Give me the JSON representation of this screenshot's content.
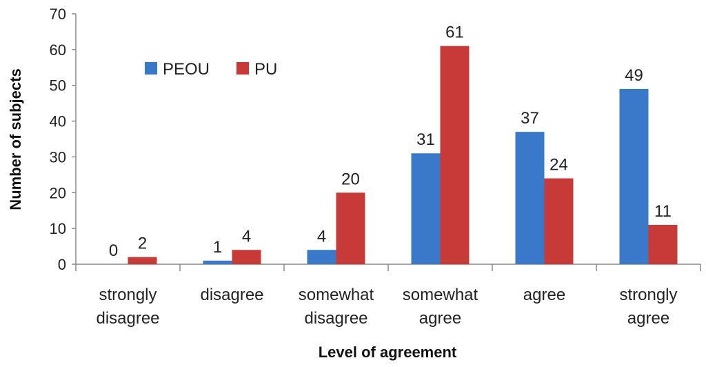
{
  "chart_data": {
    "type": "bar",
    "xlabel": "Level of agreement",
    "ylabel": "Number of subjects",
    "ylim": [
      0,
      70
    ],
    "yticks": [
      0,
      10,
      20,
      30,
      40,
      50,
      60,
      70
    ],
    "categories": [
      [
        "strongly",
        "disagree"
      ],
      [
        "disagree"
      ],
      [
        "somewhat",
        "disagree"
      ],
      [
        "somewhat",
        "agree"
      ],
      [
        "agree"
      ],
      [
        "strongly",
        "agree"
      ]
    ],
    "series": [
      {
        "name": "PEOU",
        "color": "#3a78c9",
        "values": [
          0,
          1,
          4,
          31,
          37,
          49
        ]
      },
      {
        "name": "PU",
        "color": "#c83a37",
        "values": [
          2,
          4,
          20,
          61,
          24,
          11
        ]
      }
    ],
    "legend": "top-left",
    "grid": false
  }
}
